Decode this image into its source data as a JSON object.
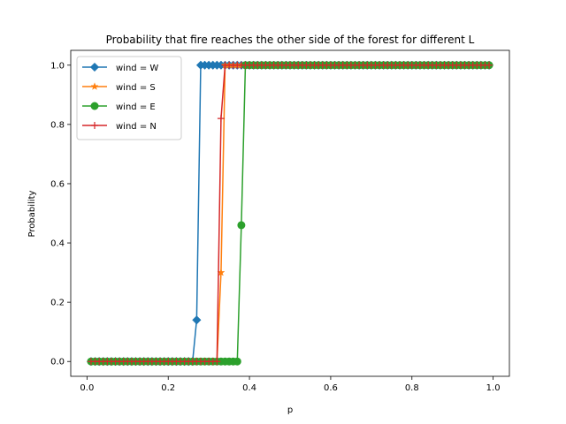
{
  "chart_data": {
    "type": "line",
    "title": "Probability that fire reaches the other side of the forest for different L",
    "xlabel": "p",
    "ylabel": "Probability",
    "xlim": [
      -0.04,
      1.04
    ],
    "ylim": [
      -0.05,
      1.05
    ],
    "xticks": [
      0.0,
      0.2,
      0.4,
      0.6,
      0.8,
      1.0
    ],
    "xtick_labels": [
      "0.0",
      "0.2",
      "0.4",
      "0.6",
      "0.8",
      "1.0"
    ],
    "yticks": [
      0.0,
      0.2,
      0.4,
      0.6,
      0.8,
      1.0
    ],
    "ytick_labels": [
      "0.0",
      "0.2",
      "0.4",
      "0.6",
      "0.8",
      "1.0"
    ],
    "legend_position": "upper-left",
    "grid": false,
    "x_start": 0.01,
    "x_step": 0.01,
    "x_count": 99,
    "series": [
      {
        "name": "wind = W",
        "color": "#1f77b4",
        "marker": "diamond",
        "breakpoints": [
          {
            "x": 0.26,
            "y": 0.0
          },
          {
            "x": 0.27,
            "y": 0.14
          },
          {
            "x": 0.28,
            "y": 1.0
          }
        ]
      },
      {
        "name": "wind = S",
        "color": "#ff7f0e",
        "marker": "star",
        "breakpoints": [
          {
            "x": 0.32,
            "y": 0.0
          },
          {
            "x": 0.33,
            "y": 0.3
          },
          {
            "x": 0.34,
            "y": 1.0
          }
        ]
      },
      {
        "name": "wind = E",
        "color": "#2ca02c",
        "marker": "circle",
        "breakpoints": [
          {
            "x": 0.37,
            "y": 0.0
          },
          {
            "x": 0.38,
            "y": 0.46
          },
          {
            "x": 0.39,
            "y": 1.0
          }
        ]
      },
      {
        "name": "wind = N",
        "color": "#d62728",
        "marker": "plus",
        "breakpoints": [
          {
            "x": 0.32,
            "y": 0.0
          },
          {
            "x": 0.33,
            "y": 0.82
          },
          {
            "x": 0.34,
            "y": 1.0
          }
        ]
      }
    ]
  }
}
